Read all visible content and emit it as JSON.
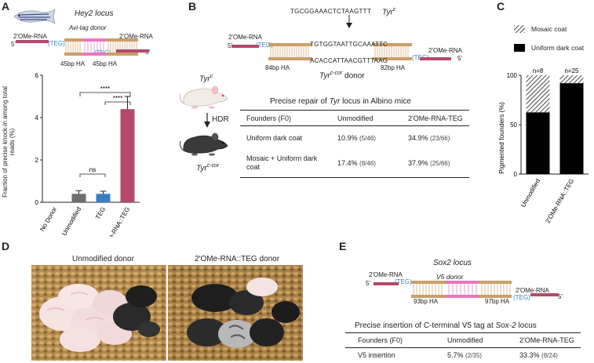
{
  "panel_labels": [
    "A",
    "B",
    "C",
    "D",
    "E"
  ],
  "colors": {
    "mauve": "#b4496a",
    "blue": "#3a7ec4",
    "grey": "#6e6e6e",
    "tan": "#c9a06a",
    "pink": "#e877c0",
    "red_base": "#d42a2a"
  },
  "panel_a": {
    "locus": "Hey2 locus",
    "donor": "Avi-tag donor",
    "left_rna": "2'OMe-RNA",
    "right_rna": "2'OMe-RNA",
    "five_prime": "5'",
    "teg": "TEG",
    "ha_left": "45bp HA",
    "ha_right": "45bp HA",
    "ylabel": "Fraction of precise knock-in among total reads (%)",
    "sig_top": "****",
    "sig_mid": "****",
    "sig_ns": "ns"
  },
  "panel_b": {
    "top_seq": "TGCGGAAACTCTAAGTTT",
    "tyr_c": "Tyr",
    "tyr_c_sup": "c",
    "seq_upper": "TGTGGTAATTGCAAATTC",
    "seq_lower": "ACACCATTAACGTTTAAG",
    "left_rna": "2'OMe-RNA",
    "right_rna": "2'OMe-RNA",
    "five_prime": "5'",
    "teg": "TEG",
    "ha_left": "84bp HA",
    "ha_right": "82bp HA",
    "donor_label": "Tyr",
    "donor_sup": "c-cor",
    "donor_suffix": " donor",
    "mouse_top": "Tyr",
    "mouse_top_sup": "c",
    "hdr": "HDR",
    "mouse_bottom": "Tyr",
    "mouse_bottom_sup": "c-cor",
    "table_title_pre": "Precise repair of ",
    "table_title_it": "Tyr",
    "table_title_post": " locus in Albino mice",
    "headers": [
      "Founders (F0)",
      "Unmodified",
      "2'OMe-RNA-TEG"
    ],
    "rows": [
      {
        "label": "Uniform dark coat",
        "unmod": "10.9%",
        "unmod_n": "(5/46)",
        "teg": "34.9%",
        "teg_n": "(23/66)"
      },
      {
        "label": "Mosaic + Uniform dark coat",
        "unmod": "17.4%",
        "unmod_n": "(8/46)",
        "teg": "37.9%",
        "teg_n": "(25/66)"
      }
    ]
  },
  "panel_c": {
    "legend_mosaic": "Mosaic coat",
    "legend_uniform": "Uniform dark coat"
  },
  "panel_d": {
    "left_title": "Unmodified donor",
    "right_title": "2'OMe-RNA::TEG donor"
  },
  "panel_e": {
    "locus": "Sox2 locus",
    "donor": "V5 donor",
    "left_rna": "2'OMe-RNA",
    "right_rna": "2'OMe-RNA",
    "five_prime": "5'",
    "teg": "TEG",
    "ha_left": "93bp HA",
    "ha_right": "97bp HA",
    "table_title_pre": "Precise insertion of C-terminal V5 tag at ",
    "table_title_it": "Sox-2",
    "table_title_post": " locus",
    "headers": [
      "Founders (F0)",
      "Unmodified",
      "2'OMe-RNA-TEG"
    ],
    "rows": [
      {
        "label": "V5 insertion",
        "unmod": "5.7%",
        "unmod_n": "(2/35)",
        "teg": "33.3%",
        "teg_n": "(8/24)"
      }
    ]
  },
  "chart_data": [
    {
      "type": "bar",
      "categories": [
        "No Donor",
        "Unmodified",
        "TEG",
        "2'OMe-RNA::TEG"
      ],
      "values": [
        0,
        0.4,
        0.4,
        4.4
      ],
      "errors": [
        0,
        0.15,
        0.12,
        0.6
      ],
      "bar_colors": [
        "#888888",
        "#6e6e6e",
        "#3a7ec4",
        "#b4496a"
      ],
      "ylim": [
        0,
        6
      ],
      "yticks": [
        "0",
        "2",
        "4",
        "6"
      ],
      "ylabel": "Fraction of precise knock-in among total reads (%)"
    },
    {
      "type": "bar",
      "stacked": true,
      "categories": [
        "Unmodified",
        "2'OMe-RNA::TEG"
      ],
      "series": [
        {
          "name": "Uniform dark coat",
          "values": [
            62.5,
            92
          ]
        },
        {
          "name": "Mosaic coat",
          "values": [
            37.5,
            8
          ]
        }
      ],
      "annotations": [
        "n=8",
        "n=25"
      ],
      "ylim": [
        0,
        100
      ],
      "yticks": [
        "0",
        "50",
        "100"
      ],
      "ylabel": "Pigmented founders (%)"
    }
  ]
}
